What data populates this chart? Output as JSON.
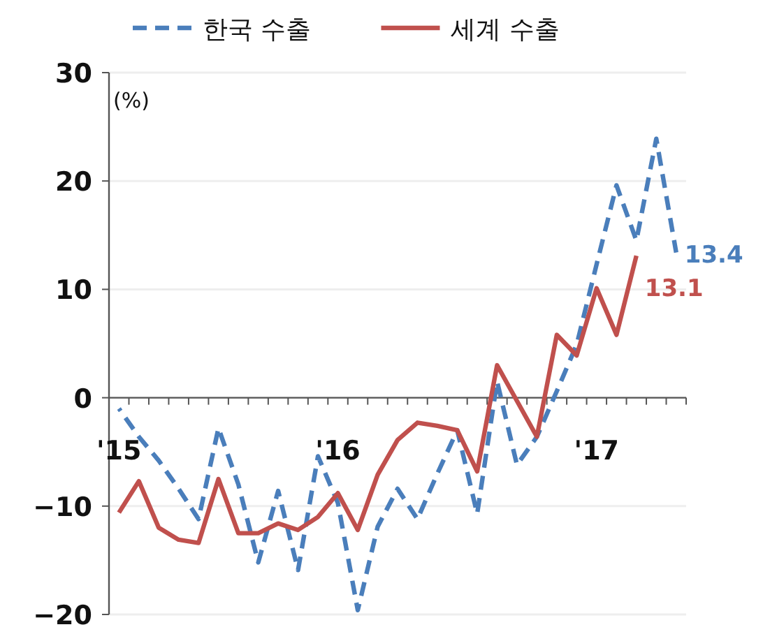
{
  "chart_data": {
    "type": "line",
    "ylabel": "(%)",
    "categories": [
      "'15",
      null,
      null,
      null,
      null,
      null,
      null,
      null,
      null,
      null,
      null,
      "'16",
      null,
      null,
      null,
      null,
      null,
      null,
      null,
      null,
      null,
      null,
      null,
      null,
      "'17",
      null,
      null,
      null,
      null
    ],
    "series": [
      {
        "name": "한국 수출",
        "color": "#4a7ebb",
        "line_style": "dashed",
        "values": [
          -1,
          -3.6,
          -5.8,
          -8.4,
          -11.2,
          -2.8,
          -8,
          -15.2,
          -8.6,
          -15.9,
          -5.4,
          -9.7,
          -19.6,
          -11.9,
          -8.4,
          -11.2,
          -7,
          -3,
          -10.7,
          1.5,
          -6.2,
          -3.6,
          0.6,
          4.9,
          12.3,
          19.6,
          14.5,
          23.9,
          13.4
        ]
      },
      {
        "name": "세계 수출",
        "color": "#c0504d",
        "line_style": "solid",
        "values": [
          -10.6,
          -7.7,
          -12,
          -13.1,
          -13.4,
          -7.5,
          -12.5,
          -12.5,
          -11.6,
          -12.2,
          -11,
          -8.8,
          -12.2,
          -7.1,
          -3.9,
          -2.3,
          -2.6,
          -3,
          -6.8,
          3,
          -0.3,
          -3.6,
          5.8,
          3.9,
          10.1,
          5.8,
          13.1,
          null,
          null
        ]
      }
    ],
    "ylim": [
      -20,
      30
    ],
    "yticks": [
      -20,
      -10,
      0,
      10,
      20,
      30
    ],
    "grid": "y",
    "legend": "top",
    "annotations": [
      "13.4",
      "13.1"
    ]
  }
}
